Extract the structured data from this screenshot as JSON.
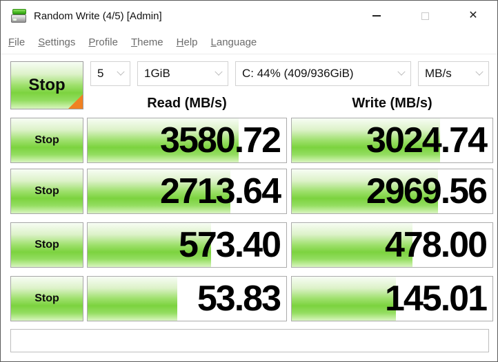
{
  "window": {
    "title": "Random Write (4/5) [Admin]",
    "icon": "crystaldiskmark-drive-icon"
  },
  "menu": {
    "items": [
      {
        "label": "File"
      },
      {
        "label": "Settings"
      },
      {
        "label": "Profile"
      },
      {
        "label": "Theme"
      },
      {
        "label": "Help"
      },
      {
        "label": "Language"
      }
    ]
  },
  "toolbar": {
    "stop_label": "Stop",
    "combos": [
      {
        "name": "test-count",
        "value": "5"
      },
      {
        "name": "test-size",
        "value": "1GiB"
      },
      {
        "name": "target-drive",
        "value": "C: 44% (409/936GiB)"
      },
      {
        "name": "unit",
        "value": "MB/s"
      }
    ]
  },
  "table": {
    "read_header": "Read (MB/s)",
    "write_header": "Write (MB/s)",
    "rows": [
      {
        "button": "Stop",
        "read": "3580.72",
        "read_fill": 76,
        "write": "3024.74",
        "write_fill": 74
      },
      {
        "button": "Stop",
        "read": "2713.64",
        "read_fill": 72,
        "write": "2969.56",
        "write_fill": 73
      },
      {
        "button": "Stop",
        "read": "573.40",
        "read_fill": 62,
        "write": "478.00",
        "write_fill": 60
      },
      {
        "button": "Stop",
        "read": "53.83",
        "read_fill": 45,
        "write": "145.01",
        "write_fill": 52
      }
    ]
  },
  "status_bar": {
    "text": ""
  },
  "colors": {
    "accent_green": "#7cd33f",
    "corner_orange": "#f08122",
    "menu_gray": "#6b6b6b",
    "border_gray": "#ababab"
  }
}
